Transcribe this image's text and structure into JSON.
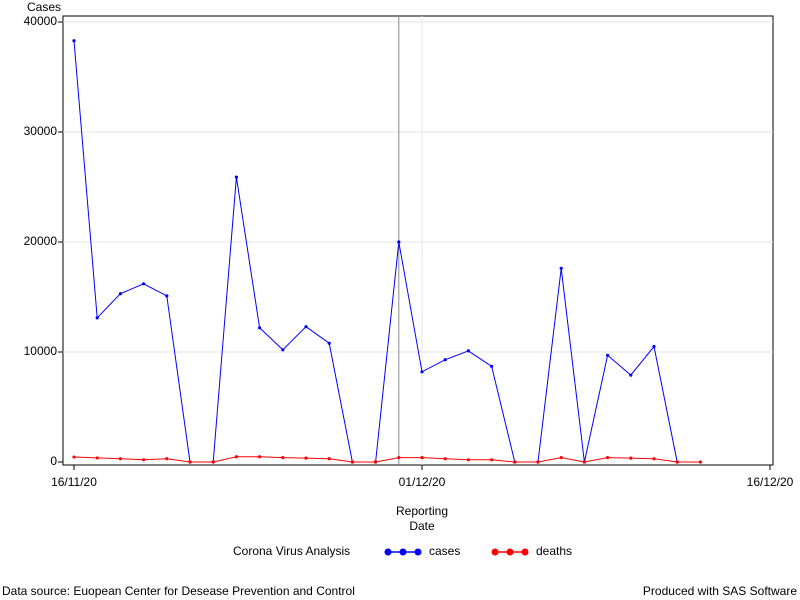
{
  "chart_data": {
    "type": "line",
    "y_label": "Cases",
    "x_label": [
      "Reporting",
      "Date"
    ],
    "legend_title": "Corona Virus Analysis",
    "footnote_left": "Data source: Euopean Center for Desease Prevention and Control",
    "footnote_right": "Produced with SAS Software",
    "x": [
      "16/11/20",
      "17/11/20",
      "18/11/20",
      "19/11/20",
      "20/11/20",
      "21/11/20",
      "22/11/20",
      "23/11/20",
      "24/11/20",
      "25/11/20",
      "26/11/20",
      "27/11/20",
      "28/11/20",
      "29/11/20",
      "30/11/20",
      "01/12/20",
      "02/12/20",
      "03/12/20",
      "04/12/20",
      "05/12/20",
      "06/12/20",
      "07/12/20",
      "08/12/20",
      "09/12/20",
      "10/12/20",
      "11/12/20",
      "12/12/20",
      "13/12/20"
    ],
    "series": [
      {
        "name": "cases",
        "color": "#0000ff",
        "values": [
          38300,
          13100,
          15300,
          16200,
          15100,
          0,
          0,
          25900,
          12200,
          10200,
          12300,
          10800,
          0,
          0,
          20000,
          8200,
          9300,
          10100,
          8700,
          0,
          0,
          17600,
          0,
          9700,
          7900,
          10500,
          0,
          null
        ]
      },
      {
        "name": "deaths",
        "color": "#ff0000",
        "values": [
          450,
          370,
          300,
          200,
          300,
          0,
          0,
          480,
          480,
          400,
          350,
          300,
          0,
          0,
          400,
          400,
          300,
          200,
          200,
          0,
          0,
          400,
          0,
          400,
          350,
          300,
          0,
          0
        ]
      }
    ],
    "xlim": [
      "16/11/20",
      "16/12/20"
    ],
    "xticks": [
      "16/11/20",
      "01/12/20",
      "16/12/20"
    ],
    "ylim": [
      0,
      40000
    ],
    "yticks": [
      0,
      10000,
      20000,
      30000,
      40000
    ],
    "reference_line_x": "30/11/20",
    "grid": true
  }
}
